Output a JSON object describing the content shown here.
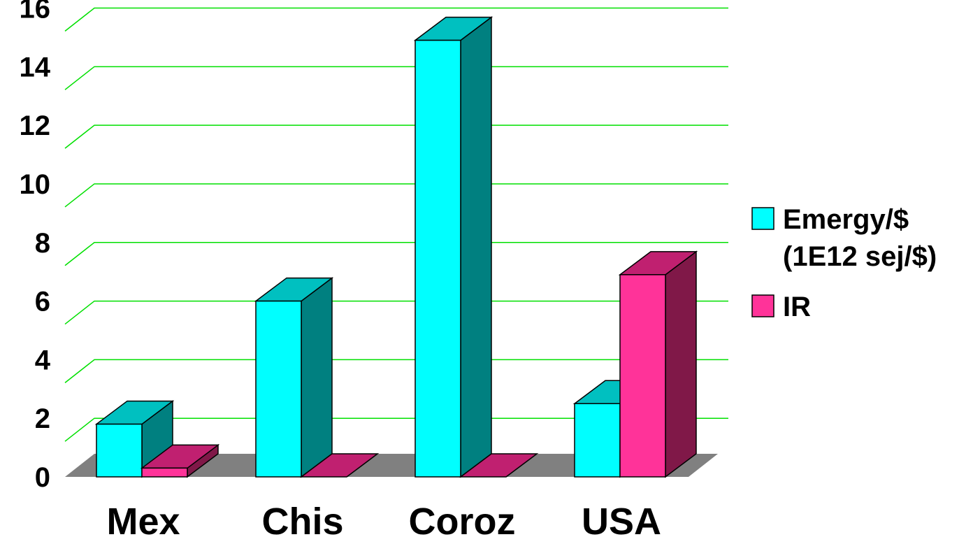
{
  "chart_data": {
    "type": "bar",
    "categories": [
      "Mex",
      "Chis",
      "Coroz",
      "USA"
    ],
    "series": [
      {
        "name": "Emergy/$ (1E12 sej/$)",
        "legend_lines": [
          "Emergy/$",
          "(1E12 sej/$)"
        ],
        "values": [
          1.8,
          6.0,
          14.9,
          2.5
        ]
      },
      {
        "name": "IR",
        "legend_lines": [
          "IR"
        ],
        "values": [
          0.3,
          0.0,
          0.0,
          6.9
        ]
      }
    ],
    "yticks": [
      "0",
      "2",
      "4",
      "6",
      "8",
      "10",
      "12",
      "14",
      "16"
    ],
    "ylim": [
      0,
      16
    ],
    "grid": true,
    "legend_position": "right",
    "three_d": true,
    "colors": {
      "series_front": [
        "#00ffff",
        "#ff3399"
      ],
      "series_top": [
        "#00c0c0",
        "#c02070"
      ],
      "series_side": [
        "#008080",
        "#801848"
      ],
      "gridline": "#00e000",
      "floor": "#808080",
      "background": "#ffffff"
    }
  }
}
